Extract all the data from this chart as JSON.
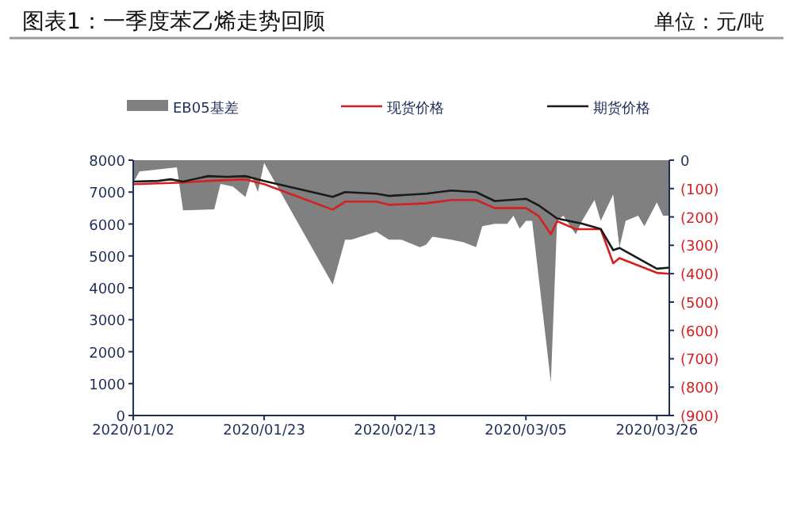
{
  "chart_data": {
    "type": "line",
    "title": "图表1：一季度苯乙烯走势回顾",
    "subtitle": "单位：元/吨",
    "legend": "top",
    "grid": false,
    "xlim": [
      "2020-01-02",
      "2020-03-28"
    ],
    "xticks": [
      {
        "value": "2020-01-02",
        "label": "2020/01/02"
      },
      {
        "value": "2020-01-23",
        "label": "2020/01/23"
      },
      {
        "value": "2020-02-13",
        "label": "2020/02/13"
      },
      {
        "value": "2020-03-05",
        "label": "2020/03/05"
      },
      {
        "value": "2020-03-26",
        "label": "2020/03/26"
      }
    ],
    "ylim": [
      0,
      8000
    ],
    "yticks": [
      0,
      1000,
      2000,
      3000,
      4000,
      5000,
      6000,
      7000,
      8000
    ],
    "y2lim": [
      -900,
      0
    ],
    "y2ticks": [
      {
        "value": -900,
        "label": "(900)"
      },
      {
        "value": -800,
        "label": "(800)"
      },
      {
        "value": -700,
        "label": "(700)"
      },
      {
        "value": -600,
        "label": "(600)"
      },
      {
        "value": -500,
        "label": "(500)"
      },
      {
        "value": -400,
        "label": "(400)"
      },
      {
        "value": -300,
        "label": "(300)"
      },
      {
        "value": -200,
        "label": "(200)"
      },
      {
        "value": -100,
        "label": "(100)"
      },
      0
    ],
    "series": [
      {
        "name": "EB05基差",
        "type": "area",
        "axis": "y2",
        "color": "#808080",
        "x": [
          "2020-01-02",
          "2020-01-03",
          "2020-01-09",
          "2020-01-10",
          "2020-01-15",
          "2020-01-16",
          "2020-01-18",
          "2020-01-20",
          "2020-01-21",
          "2020-01-22",
          "2020-01-23",
          "2020-02-03",
          "2020-02-05",
          "2020-02-06",
          "2020-02-10",
          "2020-02-12",
          "2020-02-14",
          "2020-02-17",
          "2020-02-18",
          "2020-02-19",
          "2020-02-22",
          "2020-02-24",
          "2020-02-26",
          "2020-02-27",
          "2020-02-29",
          "2020-03-02",
          "2020-03-03",
          "2020-03-04",
          "2020-03-05",
          "2020-03-06",
          "2020-03-09",
          "2020-03-10",
          "2020-03-11",
          "2020-03-13",
          "2020-03-14",
          "2020-03-16",
          "2020-03-17",
          "2020-03-19",
          "2020-03-20",
          "2020-03-21",
          "2020-03-23",
          "2020-03-24",
          "2020-03-26",
          "2020-03-27",
          "2020-03-28"
        ],
        "values": [
          -80,
          -40,
          -25,
          -177,
          -173,
          -84,
          -93,
          -130,
          -56,
          -112,
          -10,
          -438,
          -280,
          -280,
          -252,
          -280,
          -280,
          -307,
          -298,
          -270,
          -280,
          -289,
          -307,
          -233,
          -224,
          -224,
          -196,
          -242,
          -214,
          -214,
          -783,
          -214,
          -196,
          -261,
          -214,
          -140,
          -214,
          -121,
          -307,
          -214,
          -196,
          -233,
          -149,
          -196,
          -196
        ]
      },
      {
        "name": "现货价格",
        "type": "line",
        "color": "#d42020",
        "x": [
          "2020-01-02",
          "2020-01-10",
          "2020-01-14",
          "2020-01-20",
          "2020-01-23",
          "2020-02-03",
          "2020-02-05",
          "2020-02-10",
          "2020-02-12",
          "2020-02-18",
          "2020-02-22",
          "2020-02-26",
          "2020-02-29",
          "2020-03-05",
          "2020-03-07",
          "2020-03-09",
          "2020-03-10",
          "2020-03-13",
          "2020-03-17",
          "2020-03-19",
          "2020-03-20",
          "2020-03-26",
          "2020-03-28"
        ],
        "values": [
          7250,
          7300,
          7350,
          7400,
          7250,
          6450,
          6700,
          6700,
          6600,
          6650,
          6750,
          6750,
          6500,
          6500,
          6260,
          5680,
          6090,
          5840,
          5840,
          4770,
          4930,
          4470,
          4440
        ]
      },
      {
        "name": "期货价格",
        "type": "line",
        "color": "#1a1a1a",
        "x": [
          "2020-01-02",
          "2020-01-06",
          "2020-01-08",
          "2020-01-10",
          "2020-01-14",
          "2020-01-17",
          "2020-01-20",
          "2020-01-23",
          "2020-02-03",
          "2020-02-05",
          "2020-02-10",
          "2020-02-12",
          "2020-02-18",
          "2020-02-22",
          "2020-02-26",
          "2020-02-29",
          "2020-03-05",
          "2020-03-07",
          "2020-03-10",
          "2020-03-14",
          "2020-03-17",
          "2020-03-19",
          "2020-03-20",
          "2020-03-26",
          "2020-03-28"
        ],
        "values": [
          7330,
          7350,
          7400,
          7330,
          7500,
          7480,
          7500,
          7350,
          6850,
          7000,
          6950,
          6880,
          6950,
          7050,
          7000,
          6720,
          6790,
          6590,
          6175,
          6010,
          5845,
          5180,
          5250,
          4600,
          4635
        ]
      }
    ]
  }
}
